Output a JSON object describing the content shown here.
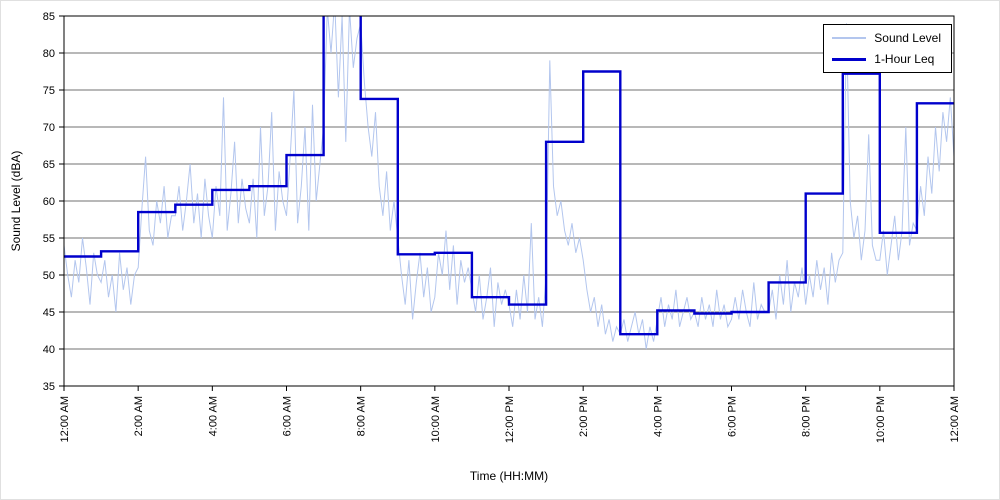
{
  "chart_data": {
    "type": "line",
    "title": "",
    "xlabel": "Time (HH:MM)",
    "ylabel": "Sound Level (dBA)",
    "xlim_hours": [
      0,
      24
    ],
    "ylim": [
      35,
      85
    ],
    "grid": "horizontal",
    "ytick_labels": [
      35,
      40,
      45,
      50,
      55,
      60,
      65,
      70,
      75,
      80,
      85
    ],
    "xtick_hours": [
      0,
      2,
      4,
      6,
      8,
      10,
      12,
      14,
      16,
      18,
      20,
      22,
      24
    ],
    "xtick_labels": [
      "12:00 AM",
      "2:00 AM",
      "4:00 AM",
      "6:00 AM",
      "8:00 AM",
      "10:00 AM",
      "12:00 PM",
      "2:00 PM",
      "4:00 PM",
      "6:00 PM",
      "8:00 PM",
      "10:00 PM",
      "12:00 AM"
    ],
    "legend": {
      "position": "top-right",
      "entries": [
        {
          "label": "Sound Level",
          "color": "#b3c6ee",
          "style": "thin"
        },
        {
          "label": "1-Hour Leq",
          "color": "#0000cc",
          "style": "thick"
        }
      ]
    },
    "series": [
      {
        "name": "Sound Level",
        "type": "line",
        "color": "#b3c6ee",
        "sample_interval_hours": 0.1,
        "values": [
          54,
          50,
          47,
          52,
          49,
          55,
          51,
          46,
          53,
          50,
          49,
          52,
          47,
          50,
          45,
          53,
          48,
          51,
          46,
          50,
          51,
          59,
          66,
          56,
          54,
          60,
          57,
          62,
          55,
          58,
          58,
          62,
          56,
          60,
          65,
          57,
          61,
          55,
          63,
          58,
          55,
          62,
          58,
          74,
          56,
          61,
          68,
          57,
          63,
          59,
          57,
          63,
          55,
          70,
          58,
          62,
          72,
          56,
          64,
          60,
          58,
          66,
          75,
          57,
          62,
          70,
          56,
          73,
          60,
          65,
          70,
          86,
          80,
          87,
          74,
          85,
          68,
          86,
          78,
          82,
          84,
          76,
          70,
          66,
          72,
          62,
          58,
          64,
          56,
          60,
          55,
          50,
          46,
          52,
          44,
          49,
          53,
          47,
          51,
          45,
          47,
          53,
          50,
          56,
          48,
          54,
          46,
          52,
          49,
          51,
          48,
          45,
          50,
          44,
          47,
          51,
          43,
          49,
          46,
          48,
          46,
          43,
          48,
          44,
          50,
          45,
          57,
          44,
          47,
          43,
          50,
          79,
          62,
          58,
          60,
          56,
          54,
          57,
          53,
          55,
          52,
          48,
          45,
          47,
          43,
          46,
          42,
          44,
          41,
          43,
          42,
          44,
          41,
          43,
          45,
          42,
          44,
          40,
          43,
          41,
          44,
          47,
          43,
          46,
          44,
          48,
          43,
          45,
          47,
          44,
          45,
          43,
          47,
          44,
          46,
          43,
          48,
          44,
          46,
          43,
          44,
          47,
          44,
          48,
          45,
          43,
          49,
          44,
          46,
          45,
          45,
          48,
          44,
          50,
          46,
          52,
          45,
          49,
          47,
          51,
          46,
          50,
          47,
          52,
          48,
          51,
          46,
          53,
          49,
          52,
          53,
          84,
          60,
          55,
          58,
          52,
          56,
          69,
          54,
          52,
          52,
          56,
          50,
          54,
          58,
          52,
          56,
          70,
          54,
          57,
          56,
          62,
          58,
          66,
          61,
          70,
          64,
          72,
          68,
          74,
          66
        ]
      },
      {
        "name": "1-Hour Leq",
        "type": "step",
        "color": "#0000cc",
        "hour_values": [
          52.5,
          53.2,
          58.5,
          59.5,
          61.5,
          62.0,
          66.2,
          88.0,
          73.8,
          52.8,
          53.0,
          47.0,
          46.0,
          68.0,
          77.5,
          42.0,
          45.2,
          44.8,
          45.0,
          49.0,
          61.0,
          77.2,
          55.7,
          73.2
        ]
      }
    ]
  }
}
